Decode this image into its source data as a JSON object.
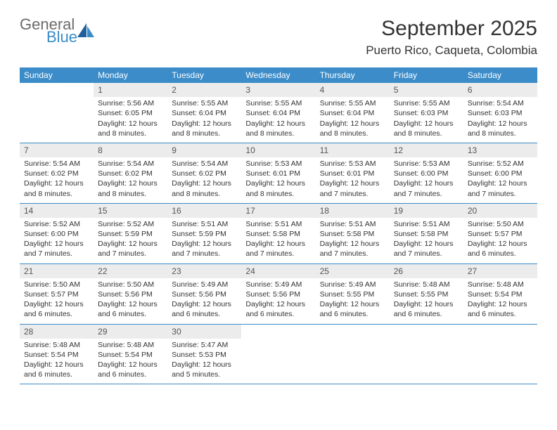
{
  "logo": {
    "general": "General",
    "blue": "Blue"
  },
  "title": "September 2025",
  "location": "Puerto Rico, Caqueta, Colombia",
  "colors": {
    "header_bg": "#3b8cc9",
    "header_text": "#ffffff",
    "daynum_bg": "#ececec",
    "text": "#333333",
    "border": "#3b8cc9",
    "logo_gray": "#6b6b6b",
    "logo_blue": "#3b8cc9"
  },
  "font": {
    "body_size": 10.5,
    "daynum_size": 12,
    "weekday_size": 12,
    "title_size": 30,
    "location_size": 17
  },
  "weekdays": [
    "Sunday",
    "Monday",
    "Tuesday",
    "Wednesday",
    "Thursday",
    "Friday",
    "Saturday"
  ],
  "weeks": [
    [
      null,
      {
        "n": "1",
        "sr": "Sunrise: 5:56 AM",
        "ss": "Sunset: 6:05 PM",
        "d1": "Daylight: 12 hours",
        "d2": "and 8 minutes."
      },
      {
        "n": "2",
        "sr": "Sunrise: 5:55 AM",
        "ss": "Sunset: 6:04 PM",
        "d1": "Daylight: 12 hours",
        "d2": "and 8 minutes."
      },
      {
        "n": "3",
        "sr": "Sunrise: 5:55 AM",
        "ss": "Sunset: 6:04 PM",
        "d1": "Daylight: 12 hours",
        "d2": "and 8 minutes."
      },
      {
        "n": "4",
        "sr": "Sunrise: 5:55 AM",
        "ss": "Sunset: 6:04 PM",
        "d1": "Daylight: 12 hours",
        "d2": "and 8 minutes."
      },
      {
        "n": "5",
        "sr": "Sunrise: 5:55 AM",
        "ss": "Sunset: 6:03 PM",
        "d1": "Daylight: 12 hours",
        "d2": "and 8 minutes."
      },
      {
        "n": "6",
        "sr": "Sunrise: 5:54 AM",
        "ss": "Sunset: 6:03 PM",
        "d1": "Daylight: 12 hours",
        "d2": "and 8 minutes."
      }
    ],
    [
      {
        "n": "7",
        "sr": "Sunrise: 5:54 AM",
        "ss": "Sunset: 6:02 PM",
        "d1": "Daylight: 12 hours",
        "d2": "and 8 minutes."
      },
      {
        "n": "8",
        "sr": "Sunrise: 5:54 AM",
        "ss": "Sunset: 6:02 PM",
        "d1": "Daylight: 12 hours",
        "d2": "and 8 minutes."
      },
      {
        "n": "9",
        "sr": "Sunrise: 5:54 AM",
        "ss": "Sunset: 6:02 PM",
        "d1": "Daylight: 12 hours",
        "d2": "and 8 minutes."
      },
      {
        "n": "10",
        "sr": "Sunrise: 5:53 AM",
        "ss": "Sunset: 6:01 PM",
        "d1": "Daylight: 12 hours",
        "d2": "and 8 minutes."
      },
      {
        "n": "11",
        "sr": "Sunrise: 5:53 AM",
        "ss": "Sunset: 6:01 PM",
        "d1": "Daylight: 12 hours",
        "d2": "and 7 minutes."
      },
      {
        "n": "12",
        "sr": "Sunrise: 5:53 AM",
        "ss": "Sunset: 6:00 PM",
        "d1": "Daylight: 12 hours",
        "d2": "and 7 minutes."
      },
      {
        "n": "13",
        "sr": "Sunrise: 5:52 AM",
        "ss": "Sunset: 6:00 PM",
        "d1": "Daylight: 12 hours",
        "d2": "and 7 minutes."
      }
    ],
    [
      {
        "n": "14",
        "sr": "Sunrise: 5:52 AM",
        "ss": "Sunset: 6:00 PM",
        "d1": "Daylight: 12 hours",
        "d2": "and 7 minutes."
      },
      {
        "n": "15",
        "sr": "Sunrise: 5:52 AM",
        "ss": "Sunset: 5:59 PM",
        "d1": "Daylight: 12 hours",
        "d2": "and 7 minutes."
      },
      {
        "n": "16",
        "sr": "Sunrise: 5:51 AM",
        "ss": "Sunset: 5:59 PM",
        "d1": "Daylight: 12 hours",
        "d2": "and 7 minutes."
      },
      {
        "n": "17",
        "sr": "Sunrise: 5:51 AM",
        "ss": "Sunset: 5:58 PM",
        "d1": "Daylight: 12 hours",
        "d2": "and 7 minutes."
      },
      {
        "n": "18",
        "sr": "Sunrise: 5:51 AM",
        "ss": "Sunset: 5:58 PM",
        "d1": "Daylight: 12 hours",
        "d2": "and 7 minutes."
      },
      {
        "n": "19",
        "sr": "Sunrise: 5:51 AM",
        "ss": "Sunset: 5:58 PM",
        "d1": "Daylight: 12 hours",
        "d2": "and 7 minutes."
      },
      {
        "n": "20",
        "sr": "Sunrise: 5:50 AM",
        "ss": "Sunset: 5:57 PM",
        "d1": "Daylight: 12 hours",
        "d2": "and 6 minutes."
      }
    ],
    [
      {
        "n": "21",
        "sr": "Sunrise: 5:50 AM",
        "ss": "Sunset: 5:57 PM",
        "d1": "Daylight: 12 hours",
        "d2": "and 6 minutes."
      },
      {
        "n": "22",
        "sr": "Sunrise: 5:50 AM",
        "ss": "Sunset: 5:56 PM",
        "d1": "Daylight: 12 hours",
        "d2": "and 6 minutes."
      },
      {
        "n": "23",
        "sr": "Sunrise: 5:49 AM",
        "ss": "Sunset: 5:56 PM",
        "d1": "Daylight: 12 hours",
        "d2": "and 6 minutes."
      },
      {
        "n": "24",
        "sr": "Sunrise: 5:49 AM",
        "ss": "Sunset: 5:56 PM",
        "d1": "Daylight: 12 hours",
        "d2": "and 6 minutes."
      },
      {
        "n": "25",
        "sr": "Sunrise: 5:49 AM",
        "ss": "Sunset: 5:55 PM",
        "d1": "Daylight: 12 hours",
        "d2": "and 6 minutes."
      },
      {
        "n": "26",
        "sr": "Sunrise: 5:48 AM",
        "ss": "Sunset: 5:55 PM",
        "d1": "Daylight: 12 hours",
        "d2": "and 6 minutes."
      },
      {
        "n": "27",
        "sr": "Sunrise: 5:48 AM",
        "ss": "Sunset: 5:54 PM",
        "d1": "Daylight: 12 hours",
        "d2": "and 6 minutes."
      }
    ],
    [
      {
        "n": "28",
        "sr": "Sunrise: 5:48 AM",
        "ss": "Sunset: 5:54 PM",
        "d1": "Daylight: 12 hours",
        "d2": "and 6 minutes."
      },
      {
        "n": "29",
        "sr": "Sunrise: 5:48 AM",
        "ss": "Sunset: 5:54 PM",
        "d1": "Daylight: 12 hours",
        "d2": "and 6 minutes."
      },
      {
        "n": "30",
        "sr": "Sunrise: 5:47 AM",
        "ss": "Sunset: 5:53 PM",
        "d1": "Daylight: 12 hours",
        "d2": "and 5 minutes."
      },
      null,
      null,
      null,
      null
    ]
  ]
}
